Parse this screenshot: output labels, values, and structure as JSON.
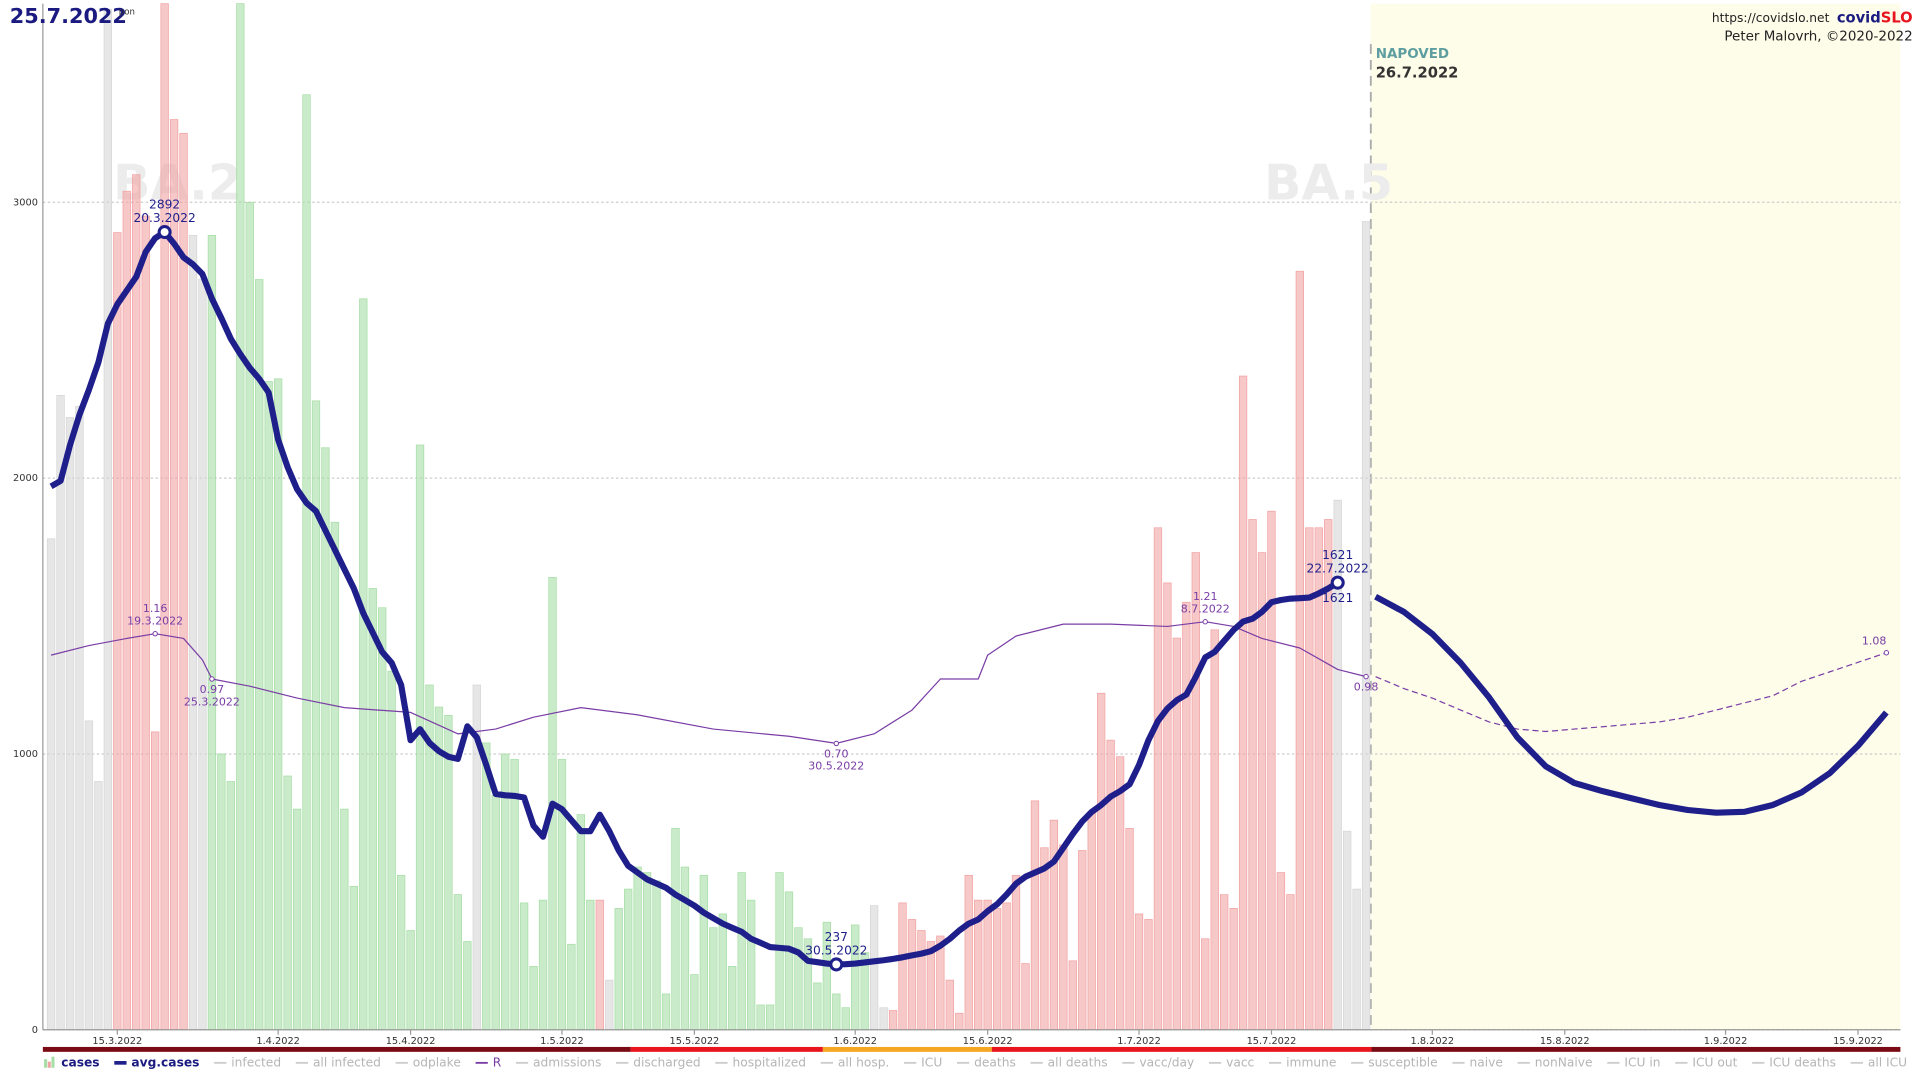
{
  "chart_data": {
    "type": "bar",
    "title": "25.7.2022",
    "weekday": "pon",
    "site": "https://covidslo.net",
    "brand_prefix": "covid",
    "brand_suffix": "SLO",
    "author": "Peter Malovrh, ©2020-2022",
    "variants": [
      "BA.2",
      "BA.5"
    ],
    "xlim": [
      "7.3.2022",
      "20.9.2022"
    ],
    "xticks": [
      "15.3.2022",
      "1.4.2022",
      "15.4.2022",
      "1.5.2022",
      "15.5.2022",
      "1.6.2022",
      "15.6.2022",
      "1.7.2022",
      "15.7.2022",
      "1.8.2022",
      "15.8.2022",
      "1.9.2022",
      "15.9.2022"
    ],
    "ylim": [
      0,
      3720
    ],
    "yticks": [
      0,
      1000,
      2000,
      3000
    ],
    "grid": true,
    "y2lim": [
      -0.5,
      3.8
    ],
    "x": [
      "8.3.2022",
      "9.3.2022",
      "10.3.2022",
      "11.3.2022",
      "12.3.2022",
      "13.3.2022",
      "14.3.2022",
      "15.3.2022",
      "16.3.2022",
      "17.3.2022",
      "18.3.2022",
      "19.3.2022",
      "20.3.2022",
      "21.3.2022",
      "22.3.2022",
      "23.3.2022",
      "24.3.2022",
      "25.3.2022",
      "26.3.2022",
      "27.3.2022",
      "28.3.2022",
      "29.3.2022",
      "30.3.2022",
      "31.3.2022",
      "1.4.2022",
      "2.4.2022",
      "3.4.2022",
      "4.4.2022",
      "5.4.2022",
      "6.4.2022",
      "7.4.2022",
      "8.4.2022",
      "9.4.2022",
      "10.4.2022",
      "11.4.2022",
      "12.4.2022",
      "13.4.2022",
      "14.4.2022",
      "15.4.2022",
      "16.4.2022",
      "17.4.2022",
      "18.4.2022",
      "19.4.2022",
      "20.4.2022",
      "21.4.2022",
      "22.4.2022",
      "23.4.2022",
      "24.4.2022",
      "25.4.2022",
      "26.4.2022",
      "27.4.2022",
      "28.4.2022",
      "29.4.2022",
      "30.4.2022",
      "1.5.2022",
      "2.5.2022",
      "3.5.2022",
      "4.5.2022",
      "5.5.2022",
      "6.5.2022",
      "7.5.2022",
      "8.5.2022",
      "9.5.2022",
      "10.5.2022",
      "11.5.2022",
      "12.5.2022",
      "13.5.2022",
      "14.5.2022",
      "15.5.2022",
      "16.5.2022",
      "17.5.2022",
      "18.5.2022",
      "19.5.2022",
      "20.5.2022",
      "21.5.2022",
      "22.5.2022",
      "23.5.2022",
      "24.5.2022",
      "25.5.2022",
      "26.5.2022",
      "27.5.2022",
      "28.5.2022",
      "29.5.2022",
      "30.5.2022",
      "31.5.2022",
      "1.6.2022",
      "2.6.2022",
      "3.6.2022",
      "4.6.2022",
      "5.6.2022",
      "6.6.2022",
      "7.6.2022",
      "8.6.2022",
      "9.6.2022",
      "10.6.2022",
      "11.6.2022",
      "12.6.2022",
      "13.6.2022",
      "14.6.2022",
      "15.6.2022",
      "16.6.2022",
      "17.6.2022",
      "18.6.2022",
      "19.6.2022",
      "20.6.2022",
      "21.6.2022",
      "22.6.2022",
      "23.6.2022",
      "24.6.2022",
      "25.6.2022",
      "26.6.2022",
      "27.6.2022",
      "28.6.2022",
      "29.6.2022",
      "30.6.2022",
      "1.7.2022",
      "2.7.2022",
      "3.7.2022",
      "4.7.2022",
      "5.7.2022",
      "6.7.2022",
      "7.7.2022",
      "8.7.2022",
      "9.7.2022",
      "10.7.2022",
      "11.7.2022",
      "12.7.2022",
      "13.7.2022",
      "14.7.2022",
      "15.7.2022",
      "16.7.2022",
      "17.7.2022",
      "18.7.2022",
      "19.7.2022",
      "20.7.2022",
      "21.7.2022",
      "22.7.2022",
      "23.7.2022",
      "24.7.2022",
      "25.7.2022"
    ],
    "series": [
      {
        "name": "cases",
        "kind": "bar",
        "color_up": "#f2a3a3",
        "color_down": "#a6dea6",
        "color_flat": "#d6d6d6",
        "values": [
          1780,
          2300,
          2220,
          2260,
          1120,
          900,
          3700,
          2890,
          3040,
          3100,
          2950,
          1080,
          3720,
          3300,
          3250,
          2880,
          2720,
          2880,
          1000,
          900,
          3720,
          3000,
          2720,
          2350,
          2360,
          920,
          800,
          3390,
          2280,
          2110,
          1840,
          800,
          520,
          2650,
          1600,
          1530,
          1300,
          560,
          360,
          2120,
          1250,
          1170,
          1140,
          490,
          320,
          1250,
          1040,
          850,
          1000,
          980,
          460,
          230,
          470,
          1640,
          980,
          310,
          780,
          470,
          470,
          180,
          440,
          510,
          590,
          570,
          540,
          130,
          730,
          590,
          200,
          560,
          370,
          420,
          230,
          570,
          470,
          90,
          90,
          570,
          500,
          370,
          330,
          170,
          390,
          130,
          80,
          380,
          280,
          450,
          80,
          70,
          460,
          400,
          360,
          320,
          340,
          180,
          60,
          560,
          470,
          470,
          440,
          460,
          560,
          240,
          830,
          660,
          760,
          670,
          250,
          650,
          790,
          1220,
          1050,
          990,
          730,
          420,
          400,
          1820,
          1620,
          1420,
          1550,
          1730,
          330,
          1450,
          490,
          440,
          2370,
          1850,
          1730,
          1880,
          570,
          490,
          2750,
          1820,
          1820,
          1850,
          1920,
          720,
          510,
          2930
        ]
      },
      {
        "name": "avg.cases",
        "kind": "line",
        "color": "#1f1f8c",
        "values": [
          1970,
          1990,
          2120,
          2230,
          2320,
          2420,
          2560,
          2630,
          2680,
          2730,
          2820,
          2870,
          2892,
          2850,
          2800,
          2775,
          2740,
          2650,
          2580,
          2505,
          2450,
          2400,
          2360,
          2310,
          2140,
          2040,
          1960,
          1910,
          1880,
          1810,
          1740,
          1670,
          1600,
          1510,
          1440,
          1370,
          1330,
          1250,
          1050,
          1090,
          1040,
          1010,
          990,
          982,
          1100,
          1060,
          960,
          855,
          850,
          848,
          842,
          740,
          700,
          820,
          800,
          760,
          720,
          720,
          780,
          720,
          650,
          595,
          570,
          545,
          530,
          515,
          490,
          470,
          450,
          425,
          405,
          385,
          370,
          355,
          330,
          315,
          300,
          297,
          294,
          280,
          250,
          245,
          240,
          237,
          238,
          240,
          244,
          248,
          252,
          257,
          263,
          270,
          276,
          285,
          305,
          330,
          360,
          385,
          400,
          430,
          455,
          490,
          530,
          555,
          570,
          585,
          610,
          660,
          710,
          755,
          790,
          815,
          845,
          865,
          890,
          960,
          1050,
          1120,
          1165,
          1195,
          1215,
          1280,
          1350,
          1370,
          1410,
          1450,
          1480,
          1490,
          1515,
          1550,
          1558,
          1563,
          1565,
          1567,
          1582,
          1600,
          1621,
          null,
          null,
          null
        ],
        "annotations": [
          {
            "value": 2892,
            "label": "20.3.2022"
          },
          {
            "value": 237,
            "label": "30.5.2022"
          },
          {
            "value": 1621,
            "label": "22.7.2022"
          }
        ]
      },
      {
        "name": "R",
        "kind": "line",
        "axis": "y2",
        "color": "#7a3da6",
        "x": [
          "8.3.2022",
          "12.3.2022",
          "16.3.2022",
          "19.3.2022",
          "22.3.2022",
          "24.3.2022",
          "25.3.2022",
          "29.3.2022",
          "3.4.2022",
          "8.4.2022",
          "15.4.2022",
          "20.4.2022",
          "24.4.2022",
          "28.4.2022",
          "3.5.2022",
          "9.5.2022",
          "17.5.2022",
          "25.5.2022",
          "30.5.2022",
          "3.6.2022",
          "7.6.2022",
          "10.6.2022",
          "14.6.2022",
          "15.6.2022",
          "18.6.2022",
          "23.6.2022",
          "28.6.2022",
          "4.7.2022",
          "8.7.2022",
          "11.7.2022",
          "14.7.2022",
          "18.7.2022",
          "22.7.2022",
          "25.7.2022"
        ],
        "values": [
          1.07,
          1.11,
          1.14,
          1.16,
          1.14,
          1.05,
          0.97,
          0.94,
          0.89,
          0.85,
          0.83,
          0.74,
          0.76,
          0.81,
          0.85,
          0.82,
          0.76,
          0.73,
          0.7,
          0.74,
          0.84,
          0.97,
          0.97,
          1.07,
          1.15,
          1.2,
          1.2,
          1.19,
          1.21,
          1.19,
          1.14,
          1.1,
          1.01,
          0.98
        ],
        "annotations": [
          {
            "value": 1.16,
            "label": "19.3.2022"
          },
          {
            "value": 0.97,
            "label": "25.3.2022"
          },
          {
            "value": 0.7,
            "value_label": "0.70",
            "label": "30.5.2022"
          },
          {
            "value": 1.21,
            "label": "8.7.2022"
          },
          {
            "value": 0.98
          }
        ]
      }
    ],
    "forecast": {
      "label": "NAPOVED",
      "date": "26.7.2022",
      "background": "#fdfde9",
      "x": [
        "26.7.2022",
        "29.7.2022",
        "1.8.2022",
        "4.8.2022",
        "7.8.2022",
        "10.8.2022",
        "13.8.2022",
        "16.8.2022",
        "19.8.2022",
        "22.8.2022",
        "25.8.2022",
        "28.8.2022",
        "31.8.2022",
        "3.9.2022",
        "6.9.2022",
        "9.9.2022",
        "12.9.2022",
        "15.9.2022",
        "18.9.2022"
      ],
      "series": [
        {
          "name": "avg.cases",
          "color": "#1f1f8c",
          "values": [
            1570,
            1515,
            1435,
            1330,
            1205,
            1060,
            955,
            895,
            865,
            840,
            815,
            797,
            787,
            790,
            815,
            860,
            930,
            1030,
            1150
          ]
        },
        {
          "name": "R",
          "axis": "y2",
          "dashed": true,
          "color": "#7a3da6",
          "values": [
            0.98,
            0.93,
            0.89,
            0.84,
            0.79,
            0.76,
            0.75,
            0.76,
            0.77,
            0.78,
            0.79,
            0.81,
            0.84,
            0.87,
            0.9,
            0.96,
            1.0,
            1.04,
            1.08
          ],
          "annotations": [
            {
              "value": 1.08
            }
          ]
        }
      ]
    },
    "legend": [
      "cases",
      "avg.cases",
      "infected",
      "all infected",
      "odplake",
      "R",
      "admissions",
      "discharged",
      "hospitalized",
      "all hosp.",
      "ICU",
      "deaths",
      "all deaths",
      "vacc/day",
      "vacc",
      "immune",
      "susceptible",
      "naive",
      "nonNaive",
      "ICU in",
      "ICU out",
      "ICU deaths",
      "all ICU"
    ]
  }
}
